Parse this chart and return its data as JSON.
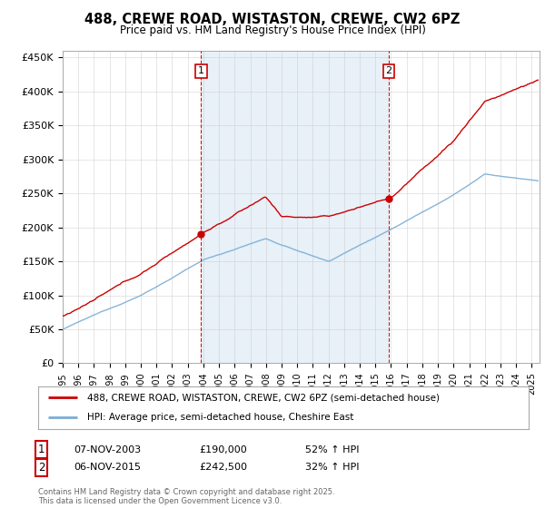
{
  "title": "488, CREWE ROAD, WISTASTON, CREWE, CW2 6PZ",
  "subtitle": "Price paid vs. HM Land Registry's House Price Index (HPI)",
  "ylabel_ticks": [
    "£0",
    "£50K",
    "£100K",
    "£150K",
    "£200K",
    "£250K",
    "£300K",
    "£350K",
    "£400K",
    "£450K"
  ],
  "ytick_values": [
    0,
    50000,
    100000,
    150000,
    200000,
    250000,
    300000,
    350000,
    400000,
    450000
  ],
  "ylim": [
    0,
    460000
  ],
  "xlim_start": 1995.0,
  "xlim_end": 2025.5,
  "transaction1_date": 2003.85,
  "transaction1_price": 190000,
  "transaction2_date": 2015.85,
  "transaction2_price": 242500,
  "legend_line1": "488, CREWE ROAD, WISTASTON, CREWE, CW2 6PZ (semi-detached house)",
  "legend_line2": "HPI: Average price, semi-detached house, Cheshire East",
  "note1_num": "1",
  "note1_date": "07-NOV-2003",
  "note1_price": "£190,000",
  "note1_hpi": "52% ↑ HPI",
  "note2_num": "2",
  "note2_date": "06-NOV-2015",
  "note2_price": "£242,500",
  "note2_hpi": "32% ↑ HPI",
  "footer": "Contains HM Land Registry data © Crown copyright and database right 2025.\nThis data is licensed under the Open Government Licence v3.0.",
  "line_color_red": "#cc0000",
  "line_color_blue": "#7aadd4",
  "vline_color": "#cc0000",
  "bg_between_color": "#e8f0f8",
  "grid_color": "#cccccc"
}
